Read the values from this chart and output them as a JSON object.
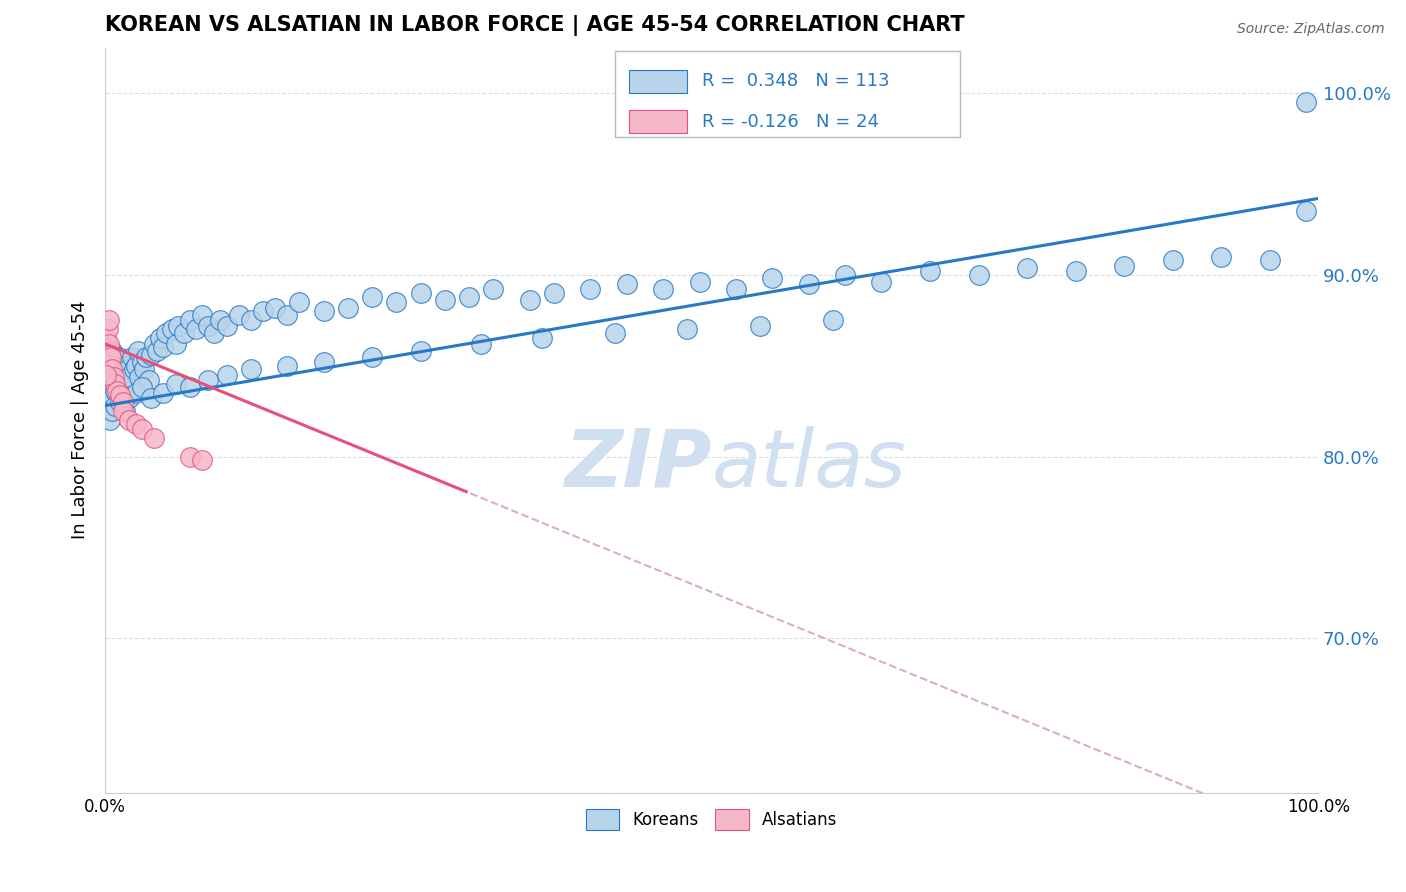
{
  "title": "KOREAN VS ALSATIAN IN LABOR FORCE | AGE 45-54 CORRELATION CHART",
  "source_text": "Source: ZipAtlas.com",
  "ylabel": "In Labor Force | Age 45-54",
  "r_korean": 0.348,
  "n_korean": 113,
  "r_alsatian": -0.126,
  "n_alsatian": 24,
  "color_korean": "#b8d4ea",
  "color_alsatian": "#f5b8c8",
  "color_line_korean": "#2878c8",
  "color_line_alsatian": "#e8507a",
  "color_line_dashed": "#d8b0bb",
  "watermark_color": "#d0e0f0",
  "legend_label_korean": "Koreans",
  "legend_label_alsatian": "Alsatians",
  "xlim": [
    0.0,
    1.0
  ],
  "ylim": [
    0.615,
    1.025
  ],
  "yticks": [
    0.7,
    0.8,
    0.9,
    1.0
  ],
  "ytick_labels": [
    "70.0%",
    "80.0%",
    "90.0%",
    "100.0%"
  ],
  "korean_x": [
    0.001,
    0.002,
    0.002,
    0.003,
    0.003,
    0.004,
    0.004,
    0.005,
    0.005,
    0.006,
    0.006,
    0.007,
    0.007,
    0.008,
    0.008,
    0.009,
    0.01,
    0.01,
    0.011,
    0.012,
    0.013,
    0.014,
    0.015,
    0.016,
    0.017,
    0.018,
    0.019,
    0.02,
    0.022,
    0.024,
    0.025,
    0.027,
    0.028,
    0.03,
    0.032,
    0.034,
    0.036,
    0.038,
    0.04,
    0.043,
    0.045,
    0.048,
    0.05,
    0.055,
    0.058,
    0.06,
    0.065,
    0.07,
    0.075,
    0.08,
    0.085,
    0.09,
    0.095,
    0.1,
    0.11,
    0.12,
    0.13,
    0.14,
    0.15,
    0.16,
    0.18,
    0.2,
    0.22,
    0.24,
    0.26,
    0.28,
    0.3,
    0.32,
    0.35,
    0.37,
    0.4,
    0.43,
    0.46,
    0.49,
    0.52,
    0.55,
    0.58,
    0.61,
    0.64,
    0.68,
    0.72,
    0.76,
    0.8,
    0.84,
    0.88,
    0.92,
    0.96,
    0.99,
    0.004,
    0.006,
    0.008,
    0.012,
    0.016,
    0.02,
    0.025,
    0.03,
    0.038,
    0.048,
    0.058,
    0.07,
    0.085,
    0.1,
    0.12,
    0.15,
    0.18,
    0.22,
    0.26,
    0.31,
    0.36,
    0.42,
    0.48,
    0.54,
    0.6,
    0.99
  ],
  "korean_y": [
    0.845,
    0.85,
    0.838,
    0.855,
    0.842,
    0.848,
    0.835,
    0.852,
    0.84,
    0.858,
    0.844,
    0.856,
    0.838,
    0.848,
    0.836,
    0.85,
    0.844,
    0.838,
    0.842,
    0.848,
    0.854,
    0.84,
    0.846,
    0.838,
    0.85,
    0.842,
    0.848,
    0.844,
    0.855,
    0.848,
    0.85,
    0.858,
    0.844,
    0.852,
    0.848,
    0.855,
    0.842,
    0.856,
    0.862,
    0.858,
    0.865,
    0.86,
    0.868,
    0.87,
    0.862,
    0.872,
    0.868,
    0.875,
    0.87,
    0.878,
    0.872,
    0.868,
    0.875,
    0.872,
    0.878,
    0.875,
    0.88,
    0.882,
    0.878,
    0.885,
    0.88,
    0.882,
    0.888,
    0.885,
    0.89,
    0.886,
    0.888,
    0.892,
    0.886,
    0.89,
    0.892,
    0.895,
    0.892,
    0.896,
    0.892,
    0.898,
    0.895,
    0.9,
    0.896,
    0.902,
    0.9,
    0.904,
    0.902,
    0.905,
    0.908,
    0.91,
    0.908,
    0.935,
    0.82,
    0.825,
    0.828,
    0.83,
    0.825,
    0.832,
    0.835,
    0.838,
    0.832,
    0.835,
    0.84,
    0.838,
    0.842,
    0.845,
    0.848,
    0.85,
    0.852,
    0.855,
    0.858,
    0.862,
    0.865,
    0.868,
    0.87,
    0.872,
    0.875,
    0.995
  ],
  "alsatian_x": [
    0.001,
    0.001,
    0.002,
    0.002,
    0.003,
    0.003,
    0.004,
    0.004,
    0.005,
    0.006,
    0.007,
    0.008,
    0.01,
    0.012,
    0.015,
    0.015,
    0.02,
    0.025,
    0.03,
    0.04,
    0.07,
    0.08,
    0.001,
    0.003
  ],
  "alsatian_y": [
    0.858,
    0.865,
    0.852,
    0.87,
    0.858,
    0.862,
    0.85,
    0.856,
    0.855,
    0.848,
    0.844,
    0.84,
    0.836,
    0.834,
    0.83,
    0.825,
    0.82,
    0.818,
    0.815,
    0.81,
    0.8,
    0.798,
    0.845,
    0.875
  ],
  "als_line_x_start": 0.0,
  "als_line_x_solid_end": 0.3,
  "als_line_x_end": 1.0,
  "blue_line_y_at_0": 0.828,
  "blue_line_y_at_1": 0.942,
  "pink_line_y_at_0": 0.862,
  "pink_line_y_at_030": 0.78
}
